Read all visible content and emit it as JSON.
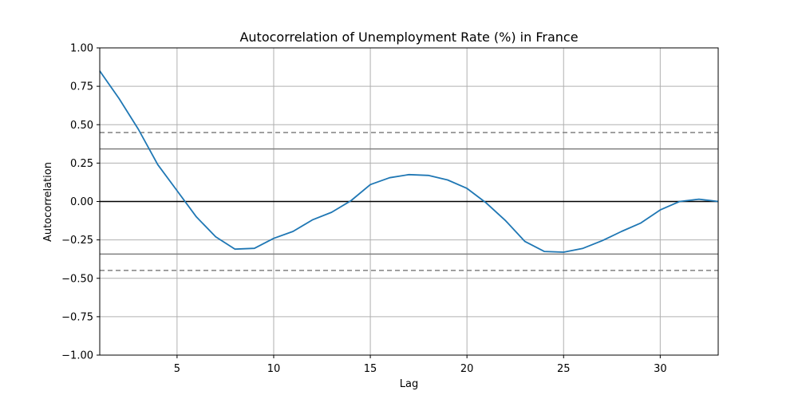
{
  "chart_data": {
    "type": "line",
    "title": "Autocorrelation of Unemployment Rate (%) in France",
    "xlabel": "Lag",
    "ylabel": "Autocorrelation",
    "xlim": [
      1,
      33
    ],
    "ylim": [
      -1.0,
      1.0
    ],
    "xticks": [
      5,
      10,
      15,
      20,
      25,
      30
    ],
    "yticks": [
      1.0,
      0.75,
      0.5,
      0.25,
      0.0,
      -0.25,
      -0.5,
      -0.75,
      -1.0
    ],
    "xtick_labels": [
      "5",
      "10",
      "15",
      "20",
      "25",
      "30"
    ],
    "ytick_labels": [
      "1.00",
      "0.75",
      "0.50",
      "0.25",
      "0.00",
      "−0.25",
      "−0.50",
      "−0.75",
      "−1.00"
    ],
    "grid": true,
    "series": [
      {
        "x": [
          1,
          2,
          3,
          4,
          5,
          6,
          7,
          8,
          9,
          10,
          11,
          12,
          13,
          14,
          15,
          16,
          17,
          18,
          19,
          20,
          21,
          22,
          23,
          24,
          25,
          26,
          27,
          28,
          29,
          30,
          31,
          32,
          33
        ],
        "values": [
          0.85,
          0.67,
          0.47,
          0.24,
          0.07,
          -0.1,
          -0.23,
          -0.31,
          -0.305,
          -0.24,
          -0.195,
          -0.12,
          -0.07,
          0.005,
          0.11,
          0.155,
          0.175,
          0.17,
          0.14,
          0.085,
          -0.01,
          -0.125,
          -0.26,
          -0.325,
          -0.33,
          -0.305,
          -0.255,
          -0.195,
          -0.14,
          -0.055,
          0.0,
          0.015,
          0.0
        ],
        "color": "#1f77b4"
      }
    ],
    "reference_lines": [
      {
        "y": 0.449,
        "style": "dashed",
        "color": "#808080"
      },
      {
        "y": 0.342,
        "style": "solid",
        "color": "#808080"
      },
      {
        "y": 0.0,
        "style": "solid",
        "color": "#000000"
      },
      {
        "y": -0.342,
        "style": "solid",
        "color": "#808080"
      },
      {
        "y": -0.449,
        "style": "dashed",
        "color": "#808080"
      }
    ]
  }
}
